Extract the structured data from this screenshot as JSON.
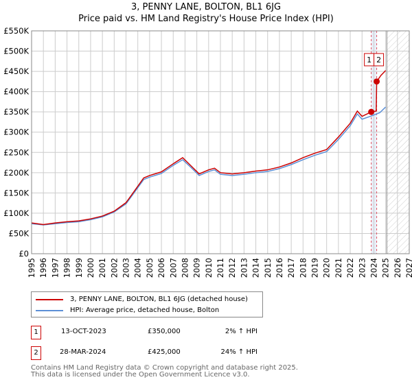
{
  "title": {
    "line1": "3, PENNY LANE, BOLTON, BL1 6JG",
    "line2": "Price paid vs. HM Land Registry's House Price Index (HPI)"
  },
  "legend": {
    "property": "3, PENNY LANE, BOLTON, BL1 6JG (detached house)",
    "hpi": "HPI: Average price, detached house, Bolton"
  },
  "sales": [
    {
      "num": "1",
      "date": "13-OCT-2023",
      "price": "£350,000",
      "hpi": "2% ↑ HPI"
    },
    {
      "num": "2",
      "date": "28-MAR-2024",
      "price": "£425,000",
      "hpi": "24% ↑ HPI"
    }
  ],
  "footer": {
    "line1": "Contains HM Land Registry data © Crown copyright and database right 2025.",
    "line2": "This data is licensed under the Open Government Licence v3.0."
  },
  "chart_data": {
    "type": "line",
    "title": "3, PENNY LANE, BOLTON, BL1 6JG — Price paid vs. HM Land Registry's House Price Index (HPI)",
    "xlim": [
      1995,
      2027
    ],
    "ylim": [
      0,
      550000
    ],
    "xticks": [
      "1995",
      "1996",
      "1997",
      "1998",
      "1999",
      "2000",
      "2001",
      "2002",
      "2003",
      "2004",
      "2005",
      "2006",
      "2007",
      "2008",
      "2009",
      "2010",
      "2011",
      "2012",
      "2013",
      "2014",
      "2015",
      "2016",
      "2017",
      "2018",
      "2019",
      "2020",
      "2021",
      "2022",
      "2023",
      "2024",
      "2025",
      "2026",
      "2027"
    ],
    "yticks": [
      "£0",
      "£50K",
      "£100K",
      "£150K",
      "£200K",
      "£250K",
      "£300K",
      "£350K",
      "£400K",
      "£450K",
      "£500K",
      "£550K"
    ],
    "colors": {
      "property": "#cc0000",
      "hpi": "#5b8fd6"
    },
    "forecast_start": 2025.1,
    "sale_points": [
      {
        "label": "1",
        "x": 2023.78,
        "y": 350000
      },
      {
        "label": "2",
        "x": 2024.24,
        "y": 425000
      }
    ],
    "series": [
      {
        "name": "HPI: Average price, detached house, Bolton",
        "x": [
          1995,
          1996,
          1997,
          1998,
          1999,
          2000,
          2001,
          2002,
          2003,
          2003.5,
          2004.5,
          2005,
          2006,
          2007,
          2007.8,
          2008.5,
          2009.2,
          2010,
          2010.5,
          2011,
          2012,
          2013,
          2014,
          2015,
          2016,
          2017,
          2018,
          2019,
          2020,
          2021,
          2022,
          2022.6,
          2023,
          2023.8,
          2024.5,
          2025
        ],
        "y": [
          74000,
          71000,
          74000,
          77000,
          79000,
          84000,
          91000,
          103000,
          123000,
          143000,
          183000,
          189000,
          198000,
          218000,
          232000,
          213000,
          193000,
          203000,
          207000,
          196000,
          193000,
          196000,
          200000,
          203000,
          210000,
          220000,
          232000,
          243000,
          252000,
          282000,
          316000,
          345000,
          332000,
          340000,
          348000,
          362000
        ]
      },
      {
        "name": "3, PENNY LANE, BOLTON, BL1 6JG (detached house)",
        "x": [
          1995,
          1996,
          1997,
          1998,
          1999,
          2000,
          2001,
          2002,
          2003,
          2003.5,
          2004.5,
          2005,
          2006,
          2007,
          2007.8,
          2008.5,
          2009.2,
          2010,
          2010.5,
          2011,
          2012,
          2013,
          2014,
          2015,
          2016,
          2017,
          2018,
          2019,
          2020,
          2021,
          2022,
          2022.6,
          2023,
          2023.78,
          2024.2,
          2024.24,
          2024.6,
          2025
        ],
        "y": [
          76000,
          72000,
          76000,
          79000,
          81000,
          86000,
          93000,
          105000,
          126000,
          146000,
          187000,
          193000,
          202000,
          222000,
          237000,
          217000,
          197000,
          207000,
          211000,
          200000,
          197000,
          200000,
          204000,
          207000,
          214000,
          224000,
          237000,
          248000,
          257000,
          288000,
          322000,
          352000,
          339000,
          350000,
          352000,
          425000,
          440000,
          452000
        ]
      }
    ]
  }
}
